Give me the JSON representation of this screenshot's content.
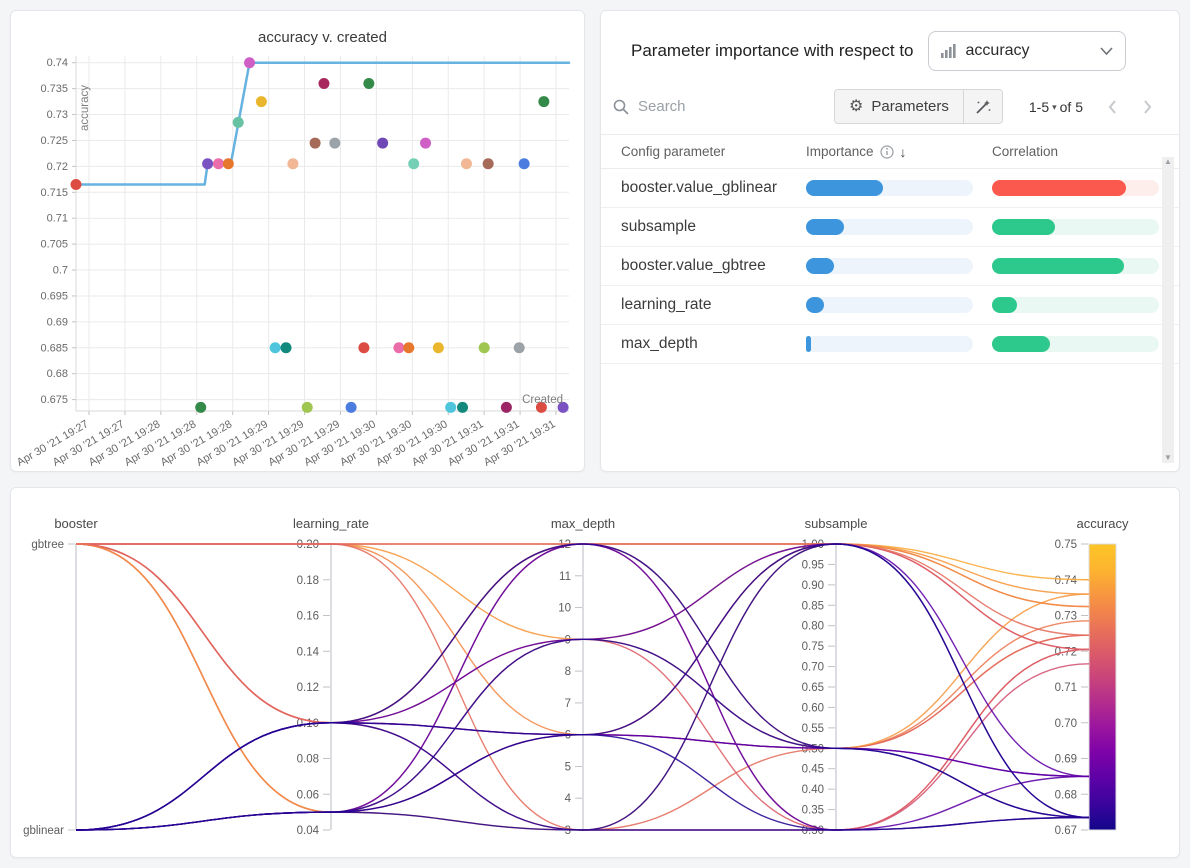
{
  "page": {
    "background": "#f4f5f6"
  },
  "icons": {
    "gear": "⚙",
    "sort_desc": "↓",
    "caret_down": "▾",
    "scroll_up": "▲",
    "scroll_down": "▼"
  },
  "importance_panel": {
    "title": "Parameter importance with respect to",
    "metric_selector": {
      "value": "accuracy",
      "icon": "bar-chart-icon"
    },
    "search_placeholder": "Search",
    "parameters_button_label": "Parameters",
    "pagination": {
      "range": "1-5",
      "of": "of 5"
    },
    "columns": [
      "Config parameter",
      "Importance",
      "Correlation"
    ],
    "sort": {
      "column": "Importance",
      "direction": "desc"
    },
    "rows": [
      {
        "name": "booster.value_gblinear",
        "importance": 0.46,
        "correlation": 0.8,
        "direction": "neg"
      },
      {
        "name": "subsample",
        "importance": 0.23,
        "correlation": 0.38,
        "direction": "pos"
      },
      {
        "name": "booster.value_gbtree",
        "importance": 0.17,
        "correlation": 0.79,
        "direction": "pos"
      },
      {
        "name": "learning_rate",
        "importance": 0.11,
        "correlation": 0.15,
        "direction": "pos"
      },
      {
        "name": "max_depth",
        "importance": 0.03,
        "correlation": 0.35,
        "direction": "pos"
      }
    ],
    "colors": {
      "importance_fill": "#3d96dd",
      "importance_track": "#edf4fb",
      "positive_fill": "#2dc88c",
      "positive_track": "#e9f8f2",
      "negative_fill": "#fb594d",
      "negative_track": "#fdeeec"
    }
  },
  "chart_data": [
    {
      "type": "scatter",
      "title": "accuracy v. created",
      "xlabel": "Created",
      "ylabel": "accuracy",
      "line_color": "#66b2e0",
      "ylim": [
        0.6728,
        0.7413
      ],
      "y_ticks": [
        "0.74",
        "0.735",
        "0.73",
        "0.725",
        "0.72",
        "0.715",
        "0.71",
        "0.705",
        "0.7",
        "0.695",
        "0.69",
        "0.685",
        "0.68",
        "0.675"
      ],
      "x_tick_labels": [
        "Apr 30 '21 19:27",
        "Apr 30 '21 19:27",
        "Apr 30 '21 19:28",
        "Apr 30 '21 19:28",
        "Apr 30 '21 19:28",
        "Apr 30 '21 19:29",
        "Apr 30 '21 19:29",
        "Apr 30 '21 19:29",
        "Apr 30 '21 19:30",
        "Apr 30 '21 19:30",
        "Apr 30 '21 19:30",
        "Apr 30 '21 19:31",
        "Apr 30 '21 19:31",
        "Apr 30 '21 19:31"
      ],
      "best_line": [
        [
          0.0,
          0.7165
        ],
        [
          0.261,
          0.7165
        ],
        [
          0.267,
          0.7205
        ],
        [
          0.314,
          0.7205
        ],
        [
          0.352,
          0.74
        ],
        [
          1.0,
          0.74
        ]
      ],
      "points": [
        {
          "x": 0.0,
          "y": 0.7165,
          "color": "#dc4c43"
        },
        {
          "x": 0.267,
          "y": 0.7205,
          "color": "#7a52c2"
        },
        {
          "x": 0.289,
          "y": 0.7205,
          "color": "#ea6daa"
        },
        {
          "x": 0.309,
          "y": 0.7205,
          "color": "#e8772e"
        },
        {
          "x": 0.329,
          "y": 0.7285,
          "color": "#67c2a3"
        },
        {
          "x": 0.352,
          "y": 0.74,
          "color": "#cf5fc4"
        },
        {
          "x": 0.376,
          "y": 0.7325,
          "color": "#eab62e"
        },
        {
          "x": 0.503,
          "y": 0.736,
          "color": "#a8285d"
        },
        {
          "x": 0.594,
          "y": 0.736,
          "color": "#338a49"
        },
        {
          "x": 0.485,
          "y": 0.7245,
          "color": "#a66a58"
        },
        {
          "x": 0.525,
          "y": 0.7245,
          "color": "#9ba2a8"
        },
        {
          "x": 0.622,
          "y": 0.7245,
          "color": "#6f48b5"
        },
        {
          "x": 0.709,
          "y": 0.7245,
          "color": "#cf5fc4"
        },
        {
          "x": 0.44,
          "y": 0.7205,
          "color": "#f2b794"
        },
        {
          "x": 0.685,
          "y": 0.7205,
          "color": "#74cfb5"
        },
        {
          "x": 0.792,
          "y": 0.7205,
          "color": "#f2b794"
        },
        {
          "x": 0.836,
          "y": 0.7205,
          "color": "#a66a58"
        },
        {
          "x": 0.909,
          "y": 0.7205,
          "color": "#4b7de0"
        },
        {
          "x": 0.949,
          "y": 0.7325,
          "color": "#338a49"
        },
        {
          "x": 0.404,
          "y": 0.685,
          "color": "#4ec5dd"
        },
        {
          "x": 0.426,
          "y": 0.685,
          "color": "#13897d"
        },
        {
          "x": 0.584,
          "y": 0.685,
          "color": "#dc4c43"
        },
        {
          "x": 0.655,
          "y": 0.685,
          "color": "#ea6daa"
        },
        {
          "x": 0.675,
          "y": 0.685,
          "color": "#e8772e"
        },
        {
          "x": 0.735,
          "y": 0.685,
          "color": "#eab62e"
        },
        {
          "x": 0.828,
          "y": 0.685,
          "color": "#9ec650"
        },
        {
          "x": 0.899,
          "y": 0.685,
          "color": "#9ba2a8"
        },
        {
          "x": 0.253,
          "y": 0.6735,
          "color": "#338a49"
        },
        {
          "x": 0.469,
          "y": 0.6735,
          "color": "#9ec650"
        },
        {
          "x": 0.558,
          "y": 0.6735,
          "color": "#4b7de0"
        },
        {
          "x": 0.76,
          "y": 0.6735,
          "color": "#4ec5dd"
        },
        {
          "x": 0.784,
          "y": 0.6735,
          "color": "#13897d"
        },
        {
          "x": 0.873,
          "y": 0.6735,
          "color": "#9c2565"
        },
        {
          "x": 0.944,
          "y": 0.6735,
          "color": "#dc4c43"
        },
        {
          "x": 0.988,
          "y": 0.6735,
          "color": "#7a52c2"
        }
      ]
    },
    {
      "type": "parallel-coordinates",
      "axes": [
        {
          "name": "booster",
          "kind": "category",
          "categories": [
            "gbtree",
            "gblinear"
          ]
        },
        {
          "name": "learning_rate",
          "kind": "numeric",
          "range": [
            0.2,
            0.04
          ],
          "ticks": [
            "0.20",
            "0.18",
            "0.16",
            "0.14",
            "0.12",
            "0.10",
            "0.08",
            "0.06",
            "0.04"
          ]
        },
        {
          "name": "max_depth",
          "kind": "numeric",
          "range": [
            12,
            3
          ],
          "ticks": [
            "12",
            "11",
            "10",
            "9",
            "8",
            "7",
            "6",
            "5",
            "4",
            "3"
          ]
        },
        {
          "name": "subsample",
          "kind": "numeric",
          "range": [
            1.0,
            0.3
          ],
          "ticks": [
            "1.00",
            "0.95",
            "0.90",
            "0.85",
            "0.80",
            "0.75",
            "0.70",
            "0.65",
            "0.60",
            "0.55",
            "0.50",
            "0.45",
            "0.40",
            "0.35",
            "0.30"
          ]
        },
        {
          "name": "accuracy",
          "kind": "numeric",
          "range": [
            0.75,
            0.67
          ],
          "ticks": [
            "0.75",
            "0.74",
            "0.73",
            "0.72",
            "0.71",
            "0.70",
            "0.69",
            "0.68",
            "0.67"
          ],
          "colorbar": true
        }
      ],
      "color_scale": {
        "metric": "accuracy",
        "domain": [
          0.67,
          0.75
        ],
        "stops": [
          "#12068a",
          "#3b049d",
          "#5d01a6",
          "#7e03a8",
          "#9c179e",
          "#b52f8c",
          "#cc4778",
          "#de5f65",
          "#ed7953",
          "#f79540",
          "#fdb42f",
          "#fdc527"
        ]
      },
      "runs": [
        {
          "booster": "gbtree",
          "learning_rate": 0.2,
          "max_depth": 12,
          "subsample": 1.0,
          "accuracy": 0.74
        },
        {
          "booster": "gbtree",
          "learning_rate": 0.2,
          "max_depth": 9,
          "subsample": 1.0,
          "accuracy": 0.736
        },
        {
          "booster": "gbtree",
          "learning_rate": 0.2,
          "max_depth": 6,
          "subsample": 1.0,
          "accuracy": 0.7325
        },
        {
          "booster": "gbtree",
          "learning_rate": 0.1,
          "max_depth": 12,
          "subsample": 0.5,
          "accuracy": 0.7285
        },
        {
          "booster": "gbtree",
          "learning_rate": 0.2,
          "max_depth": 3,
          "subsample": 0.5,
          "accuracy": 0.7245
        },
        {
          "booster": "gbtree",
          "learning_rate": 0.1,
          "max_depth": 9,
          "subsample": 0.5,
          "accuracy": 0.7245
        },
        {
          "booster": "gbtree",
          "learning_rate": 0.1,
          "max_depth": 6,
          "subsample": 1.0,
          "accuracy": 0.7205
        },
        {
          "booster": "gbtree",
          "learning_rate": 0.05,
          "max_depth": 12,
          "subsample": 1.0,
          "accuracy": 0.7205
        },
        {
          "booster": "gbtree",
          "learning_rate": 0.05,
          "max_depth": 9,
          "subsample": 0.3,
          "accuracy": 0.7205
        },
        {
          "booster": "gbtree",
          "learning_rate": 0.2,
          "max_depth": 12,
          "subsample": 0.3,
          "accuracy": 0.7205
        },
        {
          "booster": "gbtree",
          "learning_rate": 0.1,
          "max_depth": 3,
          "subsample": 0.3,
          "accuracy": 0.7165
        },
        {
          "booster": "gbtree",
          "learning_rate": 0.05,
          "max_depth": 6,
          "subsample": 0.5,
          "accuracy": 0.736
        },
        {
          "booster": "gbtree",
          "learning_rate": 0.05,
          "max_depth": 3,
          "subsample": 1.0,
          "accuracy": 0.7325
        },
        {
          "booster": "gbtree",
          "learning_rate": 0.1,
          "max_depth": 12,
          "subsample": 1.0,
          "accuracy": 0.7245
        },
        {
          "booster": "gblinear",
          "learning_rate": 0.1,
          "max_depth": 6,
          "subsample": 0.5,
          "accuracy": 0.685
        },
        {
          "booster": "gblinear",
          "learning_rate": 0.05,
          "max_depth": 6,
          "subsample": 0.5,
          "accuracy": 0.685
        },
        {
          "booster": "gblinear",
          "learning_rate": 0.1,
          "max_depth": 9,
          "subsample": 1.0,
          "accuracy": 0.685
        },
        {
          "booster": "gblinear",
          "learning_rate": 0.05,
          "max_depth": 12,
          "subsample": 0.3,
          "accuracy": 0.685
        },
        {
          "booster": "gblinear",
          "learning_rate": 0.1,
          "max_depth": 3,
          "subsample": 0.3,
          "accuracy": 0.6735
        },
        {
          "booster": "gblinear",
          "learning_rate": 0.05,
          "max_depth": 3,
          "subsample": 1.0,
          "accuracy": 0.6735
        },
        {
          "booster": "gblinear",
          "learning_rate": 0.05,
          "max_depth": 6,
          "subsample": 0.3,
          "accuracy": 0.6735
        },
        {
          "booster": "gblinear",
          "learning_rate": 0.1,
          "max_depth": 12,
          "subsample": 0.5,
          "accuracy": 0.6735
        },
        {
          "booster": "gblinear",
          "learning_rate": 0.05,
          "max_depth": 9,
          "subsample": 0.5,
          "accuracy": 0.6735
        },
        {
          "booster": "gblinear",
          "learning_rate": 0.1,
          "max_depth": 6,
          "subsample": 1.0,
          "accuracy": 0.6735
        }
      ]
    }
  ]
}
